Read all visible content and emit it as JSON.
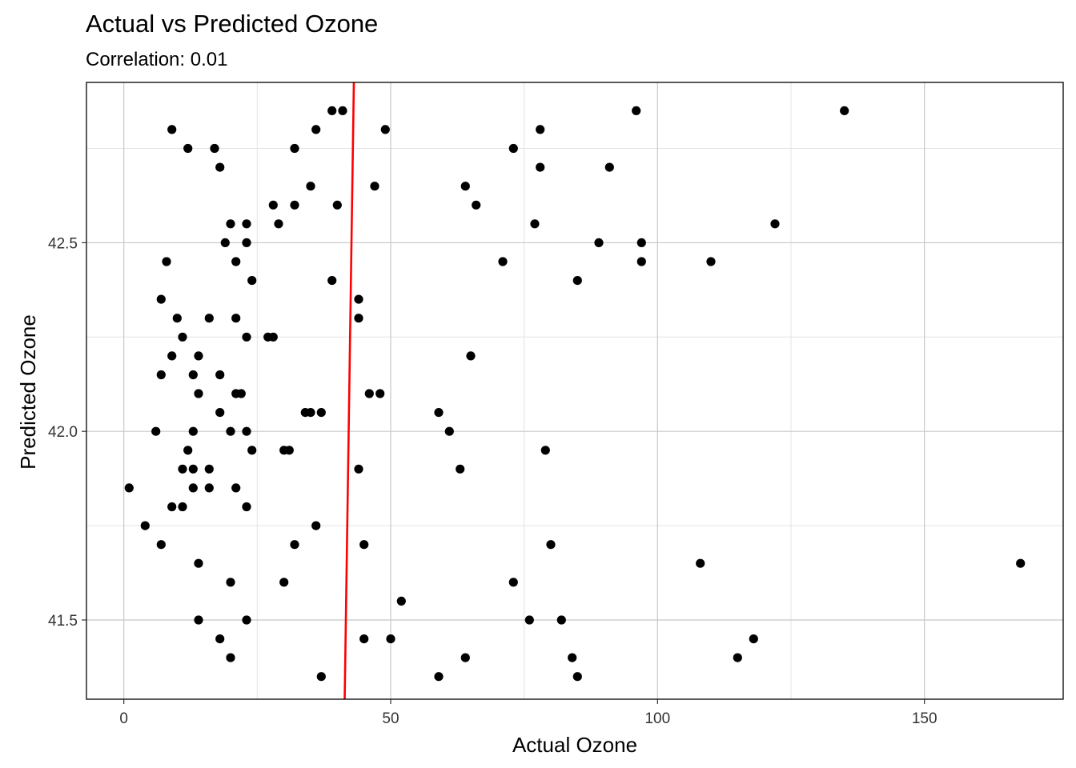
{
  "chart_data": {
    "type": "scatter",
    "title": "Actual vs Predicted Ozone",
    "subtitle": "Correlation: 0.01",
    "xlabel": "Actual Ozone",
    "ylabel": "Predicted Ozone",
    "xlim": [
      -7,
      176
    ],
    "ylim": [
      41.29,
      42.925
    ],
    "x_ticks": [
      0,
      50,
      100,
      150
    ],
    "x_tick_labels": [
      "0",
      "50",
      "100",
      "150"
    ],
    "y_ticks": [
      41.5,
      42.0,
      42.5
    ],
    "y_tick_labels": [
      "41.5",
      "42.0",
      "42.5"
    ],
    "x_minor": [
      25,
      75,
      125
    ],
    "y_minor": [
      41.75,
      42.25,
      42.75
    ],
    "grid": true,
    "point_color": "#000000",
    "fit_line": {
      "color": "#ff0000",
      "points": [
        [
          41.38,
          41.29
        ],
        [
          43.1,
          42.925
        ]
      ]
    },
    "points": [
      [
        39,
        42.85
      ],
      [
        41,
        42.85
      ],
      [
        96,
        42.85
      ],
      [
        135,
        42.85
      ],
      [
        9,
        42.8
      ],
      [
        36,
        42.8
      ],
      [
        49,
        42.8
      ],
      [
        78,
        42.8
      ],
      [
        12,
        42.75
      ],
      [
        17,
        42.75
      ],
      [
        32,
        42.75
      ],
      [
        73,
        42.75
      ],
      [
        18,
        42.7
      ],
      [
        78,
        42.7
      ],
      [
        91,
        42.7
      ],
      [
        35,
        42.65
      ],
      [
        47,
        42.65
      ],
      [
        64,
        42.65
      ],
      [
        28,
        42.6
      ],
      [
        32,
        42.6
      ],
      [
        40,
        42.6
      ],
      [
        66,
        42.6
      ],
      [
        20,
        42.55
      ],
      [
        23,
        42.55
      ],
      [
        29,
        42.55
      ],
      [
        77,
        42.55
      ],
      [
        122,
        42.55
      ],
      [
        19,
        42.5
      ],
      [
        23,
        42.5
      ],
      [
        89,
        42.5
      ],
      [
        97,
        42.5
      ],
      [
        8,
        42.45
      ],
      [
        21,
        42.45
      ],
      [
        71,
        42.45
      ],
      [
        97,
        42.45
      ],
      [
        110,
        42.45
      ],
      [
        24,
        42.4
      ],
      [
        39,
        42.4
      ],
      [
        85,
        42.4
      ],
      [
        7,
        42.35
      ],
      [
        44,
        42.35
      ],
      [
        10,
        42.3
      ],
      [
        16,
        42.3
      ],
      [
        21,
        42.3
      ],
      [
        44,
        42.3
      ],
      [
        11,
        42.25
      ],
      [
        23,
        42.25
      ],
      [
        27,
        42.25
      ],
      [
        28,
        42.25
      ],
      [
        9,
        42.2
      ],
      [
        14,
        42.2
      ],
      [
        65,
        42.2
      ],
      [
        7,
        42.15
      ],
      [
        13,
        42.15
      ],
      [
        18,
        42.15
      ],
      [
        14,
        42.1
      ],
      [
        21,
        42.1
      ],
      [
        22,
        42.1
      ],
      [
        46,
        42.1
      ],
      [
        48,
        42.1
      ],
      [
        18,
        42.05
      ],
      [
        34,
        42.05
      ],
      [
        35,
        42.05
      ],
      [
        37,
        42.05
      ],
      [
        59,
        42.05
      ],
      [
        6,
        42.0
      ],
      [
        13,
        42.0
      ],
      [
        20,
        42.0
      ],
      [
        23,
        42.0
      ],
      [
        61,
        42.0
      ],
      [
        12,
        41.95
      ],
      [
        24,
        41.95
      ],
      [
        30,
        41.95
      ],
      [
        31,
        41.95
      ],
      [
        79,
        41.95
      ],
      [
        11,
        41.9
      ],
      [
        13,
        41.9
      ],
      [
        16,
        41.9
      ],
      [
        44,
        41.9
      ],
      [
        63,
        41.9
      ],
      [
        1,
        41.85
      ],
      [
        13,
        41.85
      ],
      [
        16,
        41.85
      ],
      [
        21,
        41.85
      ],
      [
        9,
        41.8
      ],
      [
        11,
        41.8
      ],
      [
        23,
        41.8
      ],
      [
        4,
        41.75
      ],
      [
        36,
        41.75
      ],
      [
        7,
        41.7
      ],
      [
        32,
        41.7
      ],
      [
        45,
        41.7
      ],
      [
        80,
        41.7
      ],
      [
        14,
        41.65
      ],
      [
        108,
        41.65
      ],
      [
        168,
        41.65
      ],
      [
        20,
        41.6
      ],
      [
        30,
        41.6
      ],
      [
        73,
        41.6
      ],
      [
        52,
        41.55
      ],
      [
        14,
        41.5
      ],
      [
        23,
        41.5
      ],
      [
        76,
        41.5
      ],
      [
        82,
        41.5
      ],
      [
        18,
        41.45
      ],
      [
        45,
        41.45
      ],
      [
        50,
        41.45
      ],
      [
        118,
        41.45
      ],
      [
        20,
        41.4
      ],
      [
        64,
        41.4
      ],
      [
        84,
        41.4
      ],
      [
        115,
        41.4
      ],
      [
        37,
        41.35
      ],
      [
        59,
        41.35
      ],
      [
        85,
        41.35
      ]
    ]
  }
}
